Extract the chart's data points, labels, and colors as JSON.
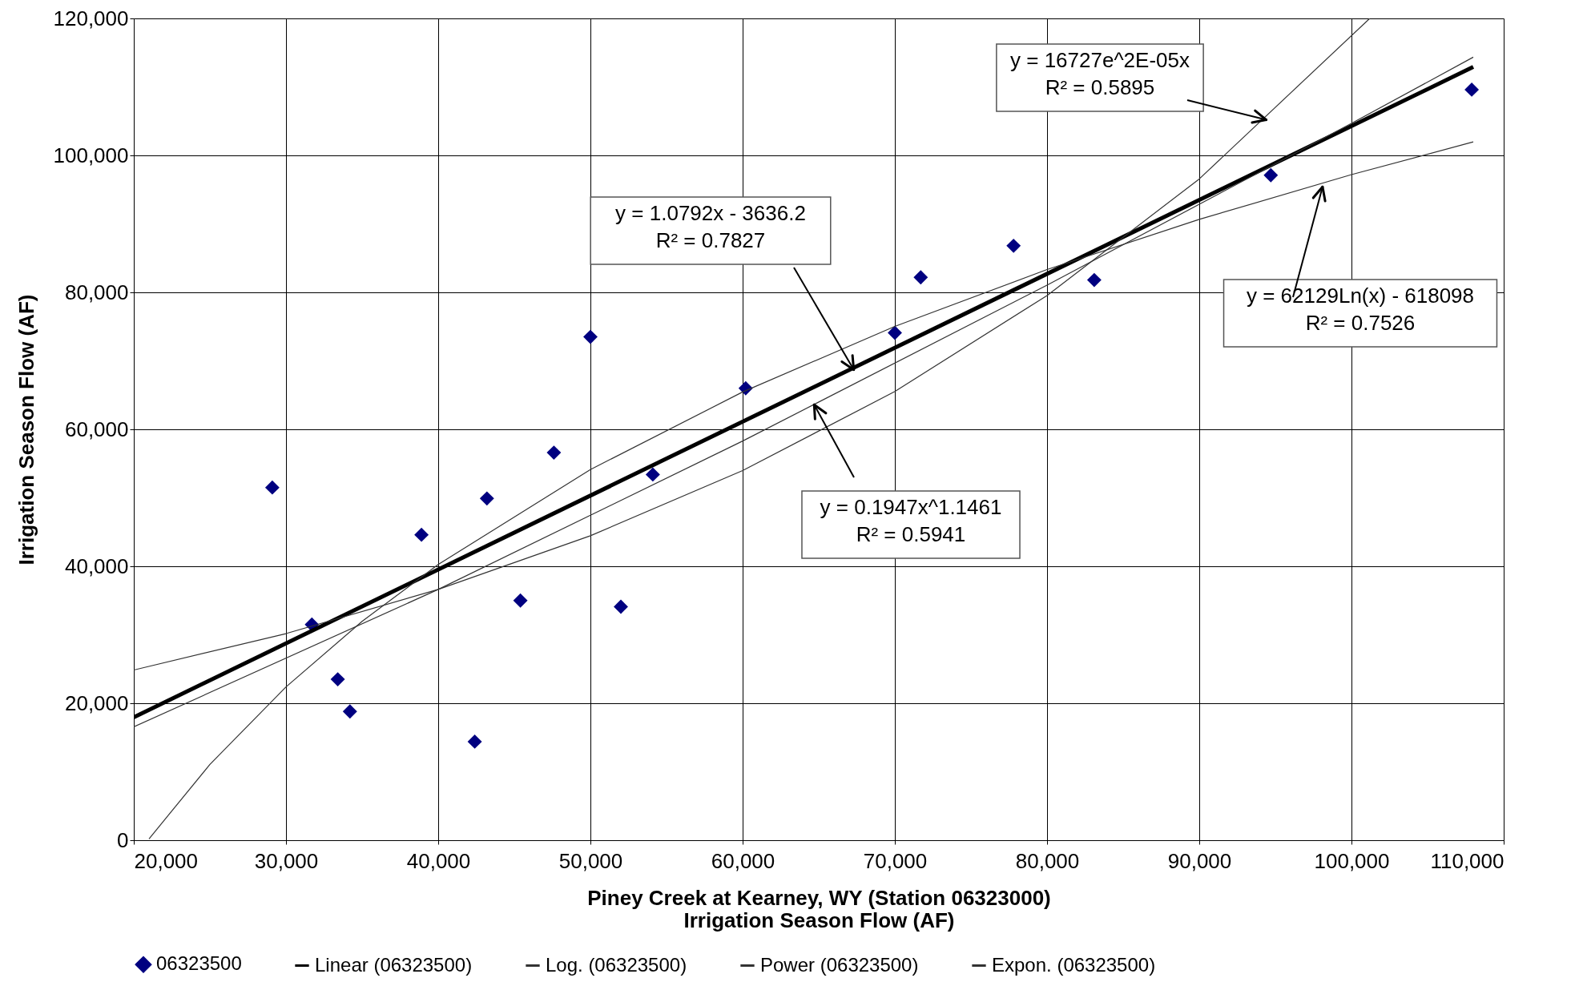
{
  "chart_data": {
    "type": "scatter",
    "xlabel": "Piney Creek at Kearney, WY (Station 06323000)\nIrrigation Season Flow (AF)",
    "ylabel": "Irrigation Season Flow (AF)",
    "xlim": [
      20000,
      110000
    ],
    "xticks": [
      {
        "value": 20000,
        "label": "20,000"
      },
      {
        "value": 30000,
        "label": "30,000"
      },
      {
        "value": 40000,
        "label": "40,000"
      },
      {
        "value": 50000,
        "label": "50,000"
      },
      {
        "value": 60000,
        "label": "60,000"
      },
      {
        "value": 70000,
        "label": "70,000"
      },
      {
        "value": 80000,
        "label": "80,000"
      },
      {
        "value": 90000,
        "label": "90,000"
      },
      {
        "value": 100000,
        "label": "100,000"
      },
      {
        "value": 110000,
        "label": "110,000"
      }
    ],
    "ylim": [
      0,
      120000
    ],
    "yticks": [
      0,
      {
        "value": 20000,
        "label": "20,000"
      },
      {
        "value": 40000,
        "label": "40,000"
      },
      {
        "value": 60000,
        "label": "60,000"
      },
      {
        "value": 80000,
        "label": "80,000"
      },
      {
        "value": 100000,
        "label": "100,000"
      },
      {
        "value": 120000,
        "label": "120,000"
      }
    ],
    "grid": true,
    "legend": "bottom",
    "series": [
      {
        "name": "06323500",
        "marker": "diamond",
        "color": "#000080",
        "x": [
          29100,
          31700,
          33400,
          34200,
          38900,
          42400,
          43200,
          45400,
          47600,
          50000,
          52000,
          54100,
          60200,
          70000,
          71700,
          77800,
          83100,
          94700,
          107900
        ],
        "values": [
          51500,
          31500,
          23500,
          18800,
          44600,
          14400,
          49900,
          35000,
          56600,
          73500,
          34100,
          53400,
          66000,
          74100,
          82200,
          86800,
          81800,
          97100,
          109600
        ]
      },
      {
        "name": "Linear (06323500)",
        "type": "line",
        "marker": "none",
        "color": "#000000",
        "x": [
          20000,
          108000
        ],
        "values": [
          17950,
          112920
        ]
      },
      {
        "name": "Log. (06323500)",
        "type": "line",
        "marker": "none",
        "color": "#333333",
        "x": [
          21000,
          25000,
          30000,
          35000,
          40000,
          50000,
          60000,
          70000,
          80000,
          90000,
          100000,
          108000
        ],
        "values": [
          200,
          11060,
          22380,
          31960,
          40260,
          54130,
          65450,
          75030,
          83330,
          90650,
          97190,
          101970
        ]
      },
      {
        "name": "Power (06323500)",
        "type": "line",
        "marker": "none",
        "color": "#333333",
        "x": [
          20000,
          40000,
          60000,
          80000,
          100000,
          108000
        ],
        "values": [
          16550,
          36620,
          58290,
          81060,
          104670,
          114340
        ]
      },
      {
        "name": "Expon. (06323500)",
        "type": "line",
        "marker": "none",
        "color": "#333333",
        "x": [
          20000,
          30000,
          40000,
          50000,
          60000,
          70000,
          80000,
          90000,
          101200
        ],
        "values": [
          24850,
          30170,
          36620,
          44460,
          53970,
          65520,
          79540,
          96560,
          120000
        ]
      }
    ],
    "annotations": [
      {
        "text": "y = 1.0792x - 3636.2\nR² = 0.7827",
        "x": 67300,
        "y": 68700
      },
      {
        "text": "y = 16727e^2E-05x\nR² = 0.5895",
        "x": 94400,
        "y": 105200
      },
      {
        "text": "y = 62129Ln(x) - 618098\nR² = 0.7526",
        "x": 98100,
        "y": 95400
      },
      {
        "text": "y = 0.1947x^1.1461\nR² = 0.5941",
        "x": 64700,
        "y": 63600
      }
    ]
  }
}
